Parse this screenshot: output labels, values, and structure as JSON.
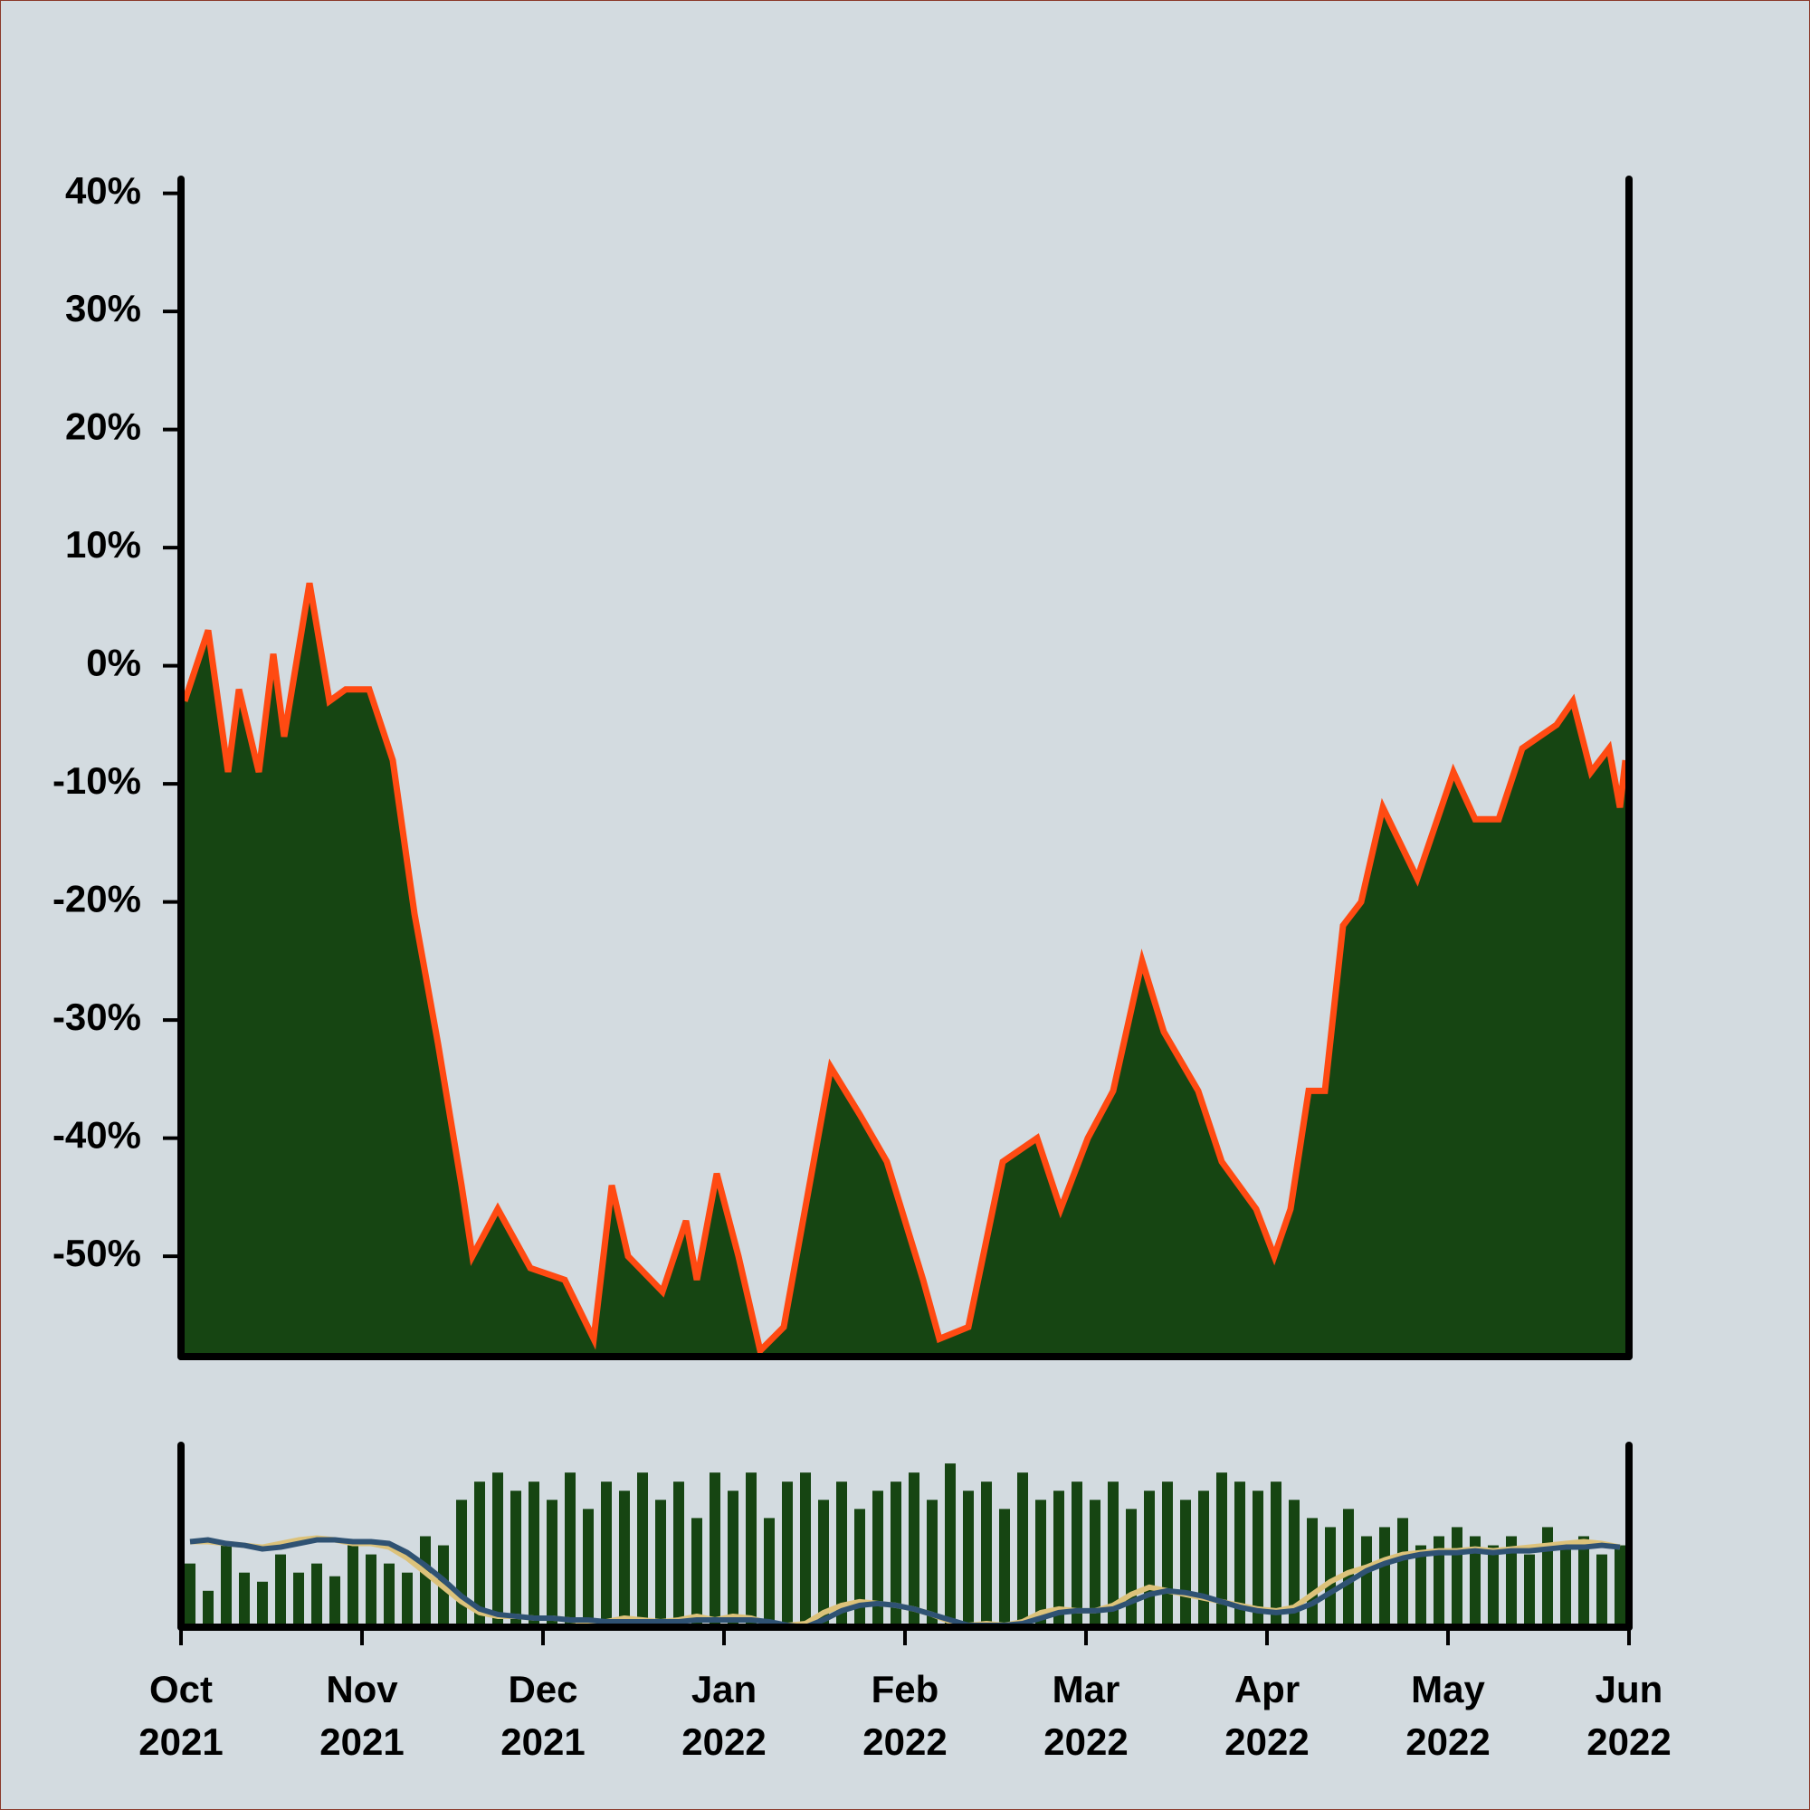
{
  "chart_data": [
    {
      "type": "area",
      "x": [
        0.02,
        0.15,
        0.26,
        0.32,
        0.43,
        0.51,
        0.57,
        0.71,
        0.82,
        0.91,
        1.04,
        1.17,
        1.29,
        1.42,
        1.55,
        1.61,
        1.75,
        1.93,
        2.12,
        2.28,
        2.38,
        2.47,
        2.66,
        2.79,
        2.85,
        2.96,
        3.08,
        3.2,
        3.33,
        3.59,
        3.75,
        3.9,
        4.1,
        4.19,
        4.35,
        4.54,
        4.73,
        4.86,
        5.01,
        5.15,
        5.31,
        5.43,
        5.62,
        5.75,
        5.94,
        6.04,
        6.13,
        6.23,
        6.32,
        6.42,
        6.52,
        6.64,
        6.83,
        7.03,
        7.15,
        7.28,
        7.41,
        7.6,
        7.69,
        7.79,
        7.89,
        7.95,
        7.98
      ],
      "values": [
        -3,
        3,
        -9,
        -2,
        -9,
        1,
        -6,
        7,
        -3,
        -2,
        -2,
        -8,
        -21,
        -32,
        -44,
        -50,
        -46,
        -51,
        -52,
        -57,
        -44,
        -50,
        -53,
        -47,
        -52,
        -43,
        -50,
        -58,
        -56,
        -34,
        -38,
        -42,
        -52,
        -57,
        -56,
        -42,
        -40,
        -46,
        -40,
        -36,
        -25,
        -31,
        -36,
        -42,
        -46,
        -50,
        -46,
        -36,
        -36,
        -22,
        -20,
        -12,
        -18,
        -9,
        -13,
        -13,
        -7,
        -5,
        -3,
        -9,
        -7,
        -12,
        -8
      ],
      "color": "#164512",
      "line_color": "#ff4a12",
      "xlim": [
        0,
        8
      ],
      "ylim": [
        -58.5,
        41.2
      ],
      "yticks": [
        {
          "value": -50,
          "label": "-50%"
        },
        {
          "value": -40,
          "label": "-40%"
        },
        {
          "value": -30,
          "label": "-30%"
        },
        {
          "value": -20,
          "label": "-20%"
        },
        {
          "value": -10,
          "label": "-10%"
        },
        {
          "value": 0,
          "label": "0%"
        },
        {
          "value": 10,
          "label": "10%"
        },
        {
          "value": 20,
          "label": "20%"
        },
        {
          "value": 30,
          "label": "30%"
        },
        {
          "value": 40,
          "label": "40%"
        }
      ]
    },
    {
      "type": "bar",
      "x": [
        0.05,
        0.15,
        0.25,
        0.35,
        0.45,
        0.55,
        0.65,
        0.75,
        0.85,
        0.95,
        1.05,
        1.15,
        1.25,
        1.35,
        1.45,
        1.55,
        1.65,
        1.75,
        1.85,
        1.95,
        2.05,
        2.15,
        2.25,
        2.35,
        2.45,
        2.55,
        2.65,
        2.75,
        2.85,
        2.95,
        3.05,
        3.15,
        3.25,
        3.35,
        3.45,
        3.55,
        3.65,
        3.75,
        3.85,
        3.95,
        4.05,
        4.15,
        4.25,
        4.35,
        4.45,
        4.55,
        4.65,
        4.75,
        4.85,
        4.95,
        5.05,
        5.15,
        5.25,
        5.35,
        5.45,
        5.55,
        5.65,
        5.75,
        5.85,
        5.95,
        6.05,
        6.15,
        6.25,
        6.35,
        6.45,
        6.55,
        6.65,
        6.75,
        6.85,
        6.95,
        7.05,
        7.15,
        7.25,
        7.35,
        7.45,
        7.55,
        7.65,
        7.75,
        7.85,
        7.95
      ],
      "values": [
        35,
        20,
        45,
        30,
        25,
        40,
        30,
        35,
        28,
        45,
        40,
        35,
        30,
        50,
        45,
        70,
        80,
        85,
        75,
        80,
        70,
        85,
        65,
        80,
        75,
        85,
        70,
        80,
        60,
        85,
        75,
        85,
        60,
        80,
        85,
        70,
        80,
        65,
        75,
        80,
        85,
        70,
        90,
        75,
        80,
        65,
        85,
        70,
        75,
        80,
        70,
        80,
        65,
        75,
        80,
        70,
        75,
        85,
        80,
        75,
        80,
        70,
        60,
        55,
        65,
        50,
        55,
        60,
        45,
        50,
        55,
        50,
        45,
        50,
        40,
        55,
        45,
        50,
        40,
        45
      ],
      "color": "#164512",
      "xlim": [
        0,
        8
      ],
      "ylim": [
        0,
        100
      ],
      "xticks": [
        {
          "value": 0,
          "label": "Oct\n2021"
        },
        {
          "value": 1,
          "label": "Nov\n2021"
        },
        {
          "value": 2,
          "label": "Dec\n2021"
        },
        {
          "value": 3,
          "label": "Jan\n2022"
        },
        {
          "value": 4,
          "label": "Feb\n2022"
        },
        {
          "value": 5,
          "label": "Mar\n2022"
        },
        {
          "value": 6,
          "label": "Apr\n2022"
        },
        {
          "value": 7,
          "label": "May\n2022"
        },
        {
          "value": 8,
          "label": "Jun\n2022"
        }
      ],
      "series": [
        {
          "color": "#dcc27a",
          "values": [
            47,
            47,
            46,
            45,
            44,
            46,
            48,
            49,
            48,
            46,
            46,
            44,
            38,
            30,
            22,
            14,
            8,
            6,
            6,
            5,
            5,
            4,
            3,
            3,
            5,
            4,
            3,
            4,
            6,
            4,
            6,
            5,
            2,
            1,
            2,
            8,
            12,
            14,
            13,
            12,
            10,
            7,
            3,
            1,
            2,
            1,
            3,
            8,
            10,
            9,
            9,
            12,
            18,
            22,
            20,
            18,
            16,
            14,
            12,
            10,
            9,
            11,
            18,
            25,
            30,
            33,
            37,
            40,
            41,
            42,
            42,
            43,
            42,
            43,
            44,
            45,
            46,
            47,
            46,
            44
          ]
        },
        {
          "color": "#2f5273",
          "values": [
            47,
            48,
            46,
            45,
            43,
            44,
            46,
            48,
            48,
            47,
            47,
            46,
            41,
            34,
            26,
            17,
            10,
            7,
            6,
            5,
            5,
            4,
            4,
            3,
            3,
            3,
            3,
            3,
            4,
            4,
            4,
            4,
            3,
            1,
            0,
            4,
            9,
            12,
            13,
            12,
            10,
            7,
            4,
            1,
            1,
            1,
            2,
            5,
            8,
            9,
            9,
            10,
            14,
            18,
            20,
            19,
            17,
            14,
            11,
            9,
            8,
            9,
            13,
            19,
            25,
            31,
            35,
            38,
            40,
            41,
            41,
            42,
            41,
            42,
            42,
            43,
            44,
            44,
            45,
            44
          ]
        }
      ]
    }
  ]
}
